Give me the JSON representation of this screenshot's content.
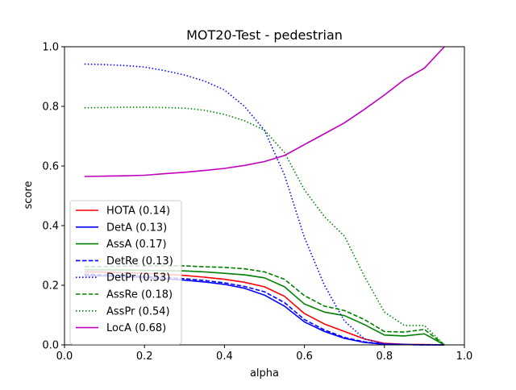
{
  "chart_data": {
    "type": "line",
    "title": "MOT20-Test - pedestrian",
    "xlabel": "alpha",
    "ylabel": "score",
    "xlim": [
      0.0,
      1.0
    ],
    "ylim": [
      0.0,
      1.0
    ],
    "xticks": [
      0.0,
      0.2,
      0.4,
      0.6,
      0.8,
      1.0
    ],
    "yticks": [
      0.0,
      0.2,
      0.4,
      0.6,
      0.8,
      1.0
    ],
    "xtick_labels": [
      "0.0",
      "0.2",
      "0.4",
      "0.6",
      "0.8",
      "1.0"
    ],
    "ytick_labels": [
      "0.0",
      "0.2",
      "0.4",
      "0.6",
      "0.8",
      "1.0"
    ],
    "grid": false,
    "legend_position": "lower-left",
    "x": [
      0.05,
      0.1,
      0.15,
      0.2,
      0.25,
      0.3,
      0.35,
      0.4,
      0.45,
      0.5,
      0.55,
      0.6,
      0.65,
      0.7,
      0.75,
      0.8,
      0.85,
      0.9,
      0.95
    ],
    "series": [
      {
        "name": "HOTA (0.14)",
        "color": "#ff0000",
        "style": "solid",
        "values": [
          0.245,
          0.244,
          0.242,
          0.24,
          0.237,
          0.233,
          0.227,
          0.22,
          0.21,
          0.195,
          0.163,
          0.105,
          0.07,
          0.045,
          0.02,
          0.005,
          0.002,
          0.001,
          0.0
        ]
      },
      {
        "name": "DetA (0.13)",
        "color": "#0000ff",
        "style": "solid",
        "values": [
          0.232,
          0.231,
          0.229,
          0.226,
          0.222,
          0.217,
          0.211,
          0.203,
          0.19,
          0.167,
          0.13,
          0.077,
          0.045,
          0.022,
          0.008,
          0.002,
          0.001,
          0.0,
          0.0
        ]
      },
      {
        "name": "AssA (0.17)",
        "color": "#008000",
        "style": "solid",
        "values": [
          0.252,
          0.252,
          0.251,
          0.25,
          0.249,
          0.248,
          0.245,
          0.24,
          0.235,
          0.225,
          0.195,
          0.137,
          0.11,
          0.098,
          0.068,
          0.033,
          0.03,
          0.037,
          0.0
        ]
      },
      {
        "name": "DetRe (0.13)",
        "color": "#0000ff",
        "style": "dashed",
        "values": [
          0.237,
          0.235,
          0.233,
          0.23,
          0.226,
          0.222,
          0.216,
          0.208,
          0.196,
          0.178,
          0.142,
          0.085,
          0.05,
          0.025,
          0.01,
          0.003,
          0.001,
          0.0,
          0.0
        ]
      },
      {
        "name": "DetPr (0.53)",
        "color": "#0000ff",
        "style": "dotted",
        "values": [
          0.942,
          0.94,
          0.937,
          0.932,
          0.92,
          0.905,
          0.885,
          0.855,
          0.8,
          0.72,
          0.57,
          0.36,
          0.2,
          0.08,
          0.02,
          0.004,
          0.001,
          0.0,
          0.0
        ]
      },
      {
        "name": "AssRe (0.18)",
        "color": "#008000",
        "style": "dashed",
        "values": [
          0.262,
          0.263,
          0.264,
          0.265,
          0.265,
          0.265,
          0.262,
          0.26,
          0.255,
          0.245,
          0.22,
          0.165,
          0.13,
          0.115,
          0.085,
          0.045,
          0.043,
          0.052,
          0.0
        ]
      },
      {
        "name": "AssPr (0.54)",
        "color": "#008000",
        "style": "dotted",
        "values": [
          0.795,
          0.796,
          0.797,
          0.797,
          0.796,
          0.794,
          0.787,
          0.773,
          0.752,
          0.72,
          0.645,
          0.52,
          0.43,
          0.365,
          0.23,
          0.11,
          0.065,
          0.065,
          0.0
        ]
      },
      {
        "name": "LocA (0.68)",
        "color": "#bf00bf",
        "style": "solid",
        "values": [
          0.565,
          0.566,
          0.567,
          0.569,
          0.574,
          0.579,
          0.585,
          0.592,
          0.602,
          0.615,
          0.635,
          0.672,
          0.708,
          0.745,
          0.79,
          0.838,
          0.89,
          0.928,
          1.0
        ]
      }
    ]
  }
}
